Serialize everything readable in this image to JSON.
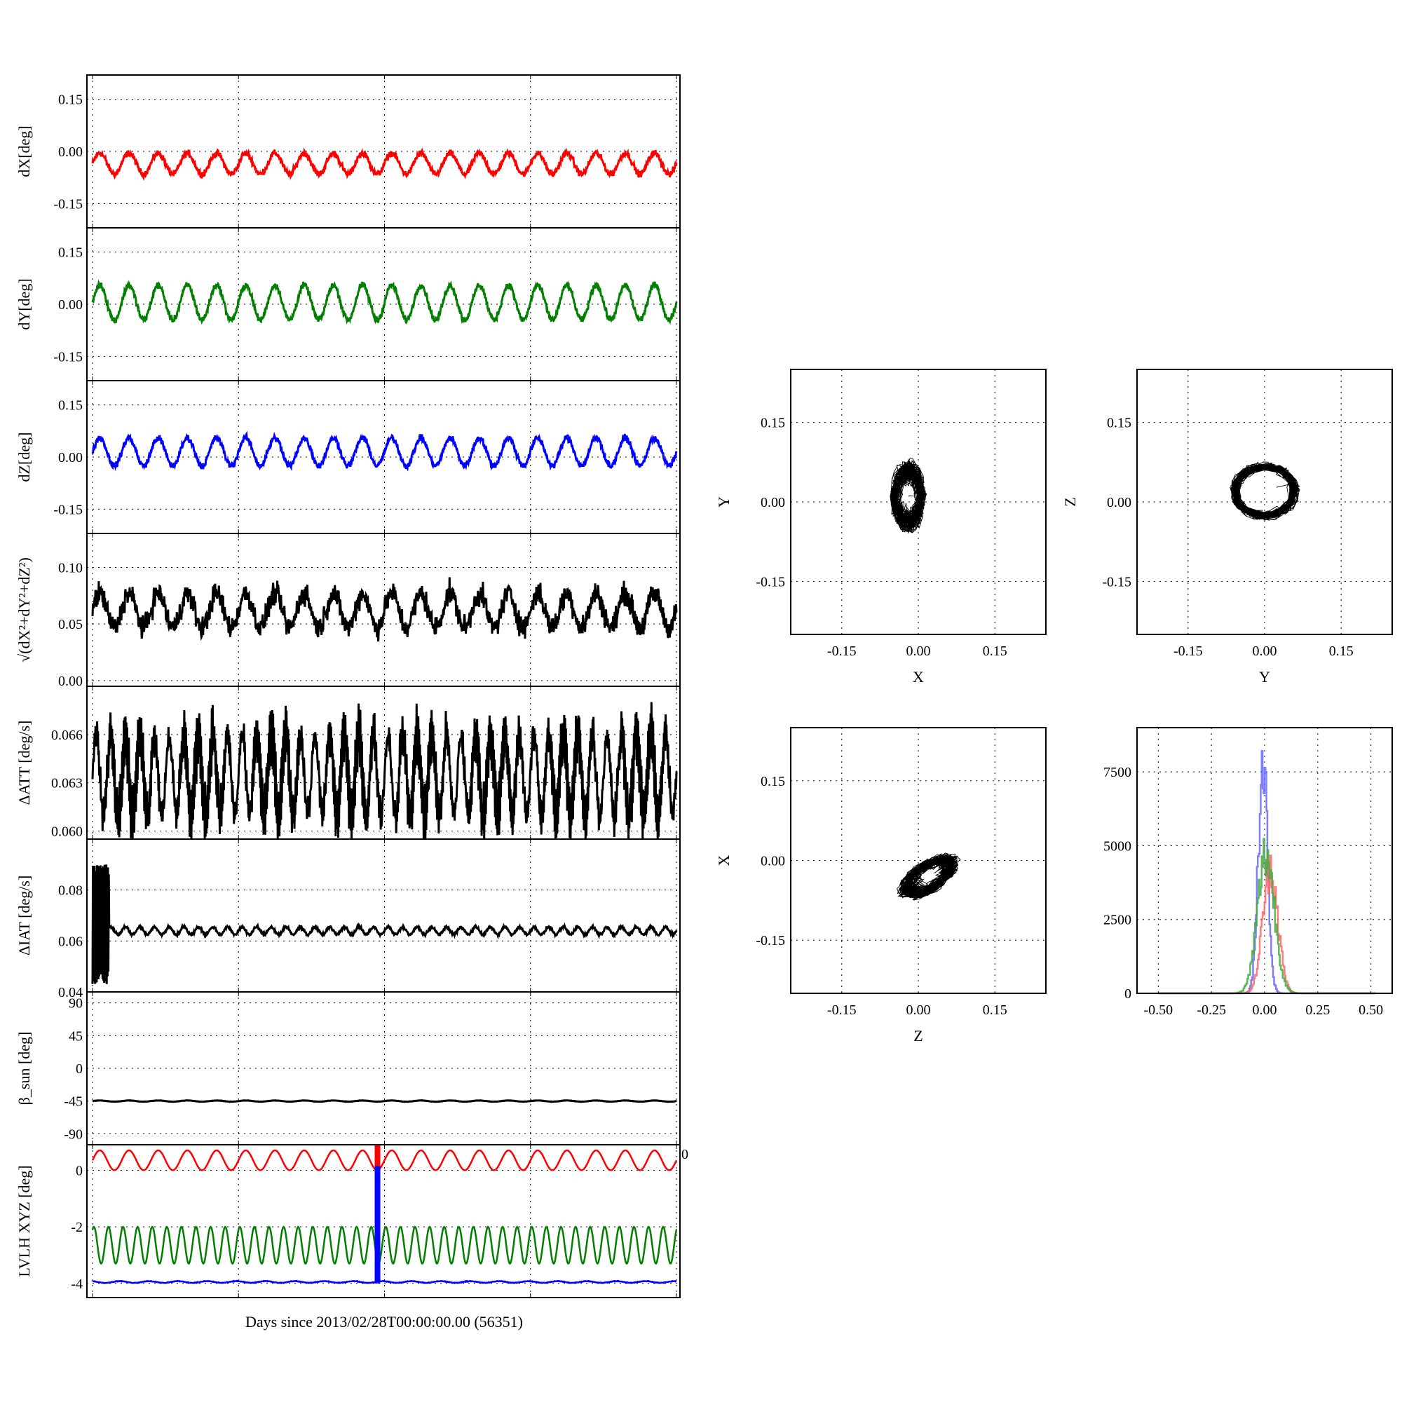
{
  "figure": {
    "xlabel": "Days since 2013/02/28T00:00:00.00 (56351)"
  },
  "chart_data": [
    {
      "id": "dX",
      "type": "line",
      "ylabel": "dX[deg]",
      "color": "#ff0000",
      "ylim": [
        -0.22,
        0.22
      ],
      "yticks": [
        "0.15",
        "0.00",
        "-0.15"
      ],
      "ytick_values": [
        0.15,
        0.0,
        -0.15
      ],
      "xlim": [
        0,
        1
      ],
      "series": [
        {
          "mean": -0.035,
          "amplitude": 0.03,
          "cycles": 20,
          "noise": 0.009
        }
      ]
    },
    {
      "id": "dY",
      "type": "line",
      "ylabel": "dY[deg]",
      "color": "#007f00",
      "ylim": [
        -0.22,
        0.22
      ],
      "yticks": [
        "0.15",
        "0.00",
        "-0.15"
      ],
      "ytick_values": [
        0.15,
        0.0,
        -0.15
      ],
      "xlim": [
        0,
        1
      ],
      "series": [
        {
          "mean": 0.005,
          "amplitude": 0.05,
          "cycles": 20,
          "noise": 0.009
        }
      ]
    },
    {
      "id": "dZ",
      "type": "line",
      "ylabel": "dZ[deg]",
      "color": "#0000ff",
      "ylim": [
        -0.22,
        0.22
      ],
      "yticks": [
        "0.15",
        "0.00",
        "-0.15"
      ],
      "ytick_values": [
        0.15,
        0.0,
        -0.15
      ],
      "xlim": [
        0,
        1
      ],
      "series": [
        {
          "mean": 0.015,
          "amplitude": 0.04,
          "cycles": 20,
          "noise": 0.009
        }
      ]
    },
    {
      "id": "dR",
      "type": "line",
      "ylabel": "√(dX²+dY²+dZ²)",
      "color": "#000000",
      "ylim": [
        -0.005,
        0.13
      ],
      "yticks": [
        "0.10",
        "0.05",
        "0.00"
      ],
      "ytick_values": [
        0.1,
        0.05,
        0.0
      ],
      "xlim": [
        0,
        1
      ],
      "series": [
        {
          "mean": 0.062,
          "amplitude": 0.015,
          "cycles": 20,
          "noise": 0.01
        }
      ]
    },
    {
      "id": "dATT",
      "type": "line",
      "ylabel": "ΔATT [deg/s]",
      "color": "#000000",
      "ylim": [
        0.0595,
        0.069
      ],
      "yticks": [
        "0.066",
        "0.063",
        "0.060"
      ],
      "ytick_values": [
        0.066,
        0.063,
        0.06
      ],
      "xlim": [
        0,
        1
      ],
      "series": [
        {
          "mean": 0.0635,
          "amplitude": 0.0025,
          "cycles": 40,
          "noise": 0.0008
        }
      ]
    },
    {
      "id": "dIAT",
      "type": "line",
      "ylabel": "ΔIAT [deg/s]",
      "color": "#000000",
      "ylim": [
        0.04,
        0.1
      ],
      "yticks": [
        "0.08",
        "0.06",
        "0.04"
      ],
      "ytick_values": [
        0.08,
        0.06,
        0.04
      ],
      "xlim": [
        0,
        1
      ],
      "series": [
        {
          "mean": 0.064,
          "amplitude": 0.0015,
          "cycles": 40,
          "noise": 0.0005,
          "early_burst_until": 0.028,
          "burst_range": [
            0.043,
            0.091
          ]
        }
      ]
    },
    {
      "id": "beta",
      "type": "line",
      "ylabel": "β_sun [deg]",
      "color": "#000000",
      "ylim": [
        -105,
        105
      ],
      "yticks": [
        "90",
        "45",
        "0",
        "-45",
        "-90"
      ],
      "ytick_values": [
        90,
        45,
        0,
        -45,
        -90
      ],
      "xlim": [
        0,
        1
      ],
      "series": [
        {
          "mean": -45,
          "amplitude": 0.8,
          "cycles": 20,
          "noise": 0.2
        }
      ]
    },
    {
      "id": "lvlh",
      "type": "line",
      "ylabel": "LVLH XYZ [deg]",
      "ylim": [
        -4.5,
        0.9
      ],
      "yticks": [
        "0",
        "-2",
        "-4"
      ],
      "ytick_values": [
        0,
        -2,
        -4
      ],
      "right_tick": "0",
      "xlim": [
        0,
        1
      ],
      "series": [
        {
          "color": "#ff0000",
          "mean": 0.35,
          "amplitude": 0.35,
          "cycles": 20,
          "noise": 0.0
        },
        {
          "color": "#007f00",
          "mean": -2.65,
          "amplitude": 0.65,
          "cycles": 40,
          "noise": 0.0
        },
        {
          "color": "#0000ff",
          "mean": -3.95,
          "amplitude": 0.03,
          "cycles": 20,
          "noise": 0.01
        }
      ],
      "spike": {
        "x": 0.488,
        "y_top": 0.9,
        "y_bottom": -4.0,
        "color": "#0000ff",
        "red_top": 0.15
      }
    }
  ],
  "scatter_panels": [
    {
      "id": "xy",
      "type": "scatter",
      "xlabel": "X",
      "ylabel": "Y",
      "xlim": [
        -0.25,
        0.25
      ],
      "ylim": [
        -0.25,
        0.25
      ],
      "ticks": [
        "-0.15",
        "0.00",
        "0.15"
      ],
      "tick_values": [
        -0.15,
        0.0,
        0.15
      ],
      "cloud": {
        "cx": -0.02,
        "cy": 0.01,
        "rx": 0.04,
        "ry": 0.08
      }
    },
    {
      "id": "yz",
      "type": "scatter",
      "xlabel": "Y",
      "ylabel": "Z",
      "xlim": [
        -0.25,
        0.25
      ],
      "ylim": [
        -0.25,
        0.25
      ],
      "ticks": [
        "-0.15",
        "0.00",
        "0.15"
      ],
      "tick_values": [
        -0.15,
        0.0,
        0.15
      ],
      "cloud": {
        "cx": 0.0,
        "cy": 0.02,
        "rx": 0.075,
        "ry": 0.06,
        "ring": true
      }
    },
    {
      "id": "zx",
      "type": "scatter",
      "xlabel": "Z",
      "ylabel": "X",
      "xlim": [
        -0.25,
        0.25
      ],
      "ylim": [
        -0.25,
        0.25
      ],
      "ticks": [
        "-0.15",
        "0.00",
        "0.15"
      ],
      "tick_values": [
        -0.15,
        0.0,
        0.15
      ],
      "cloud": {
        "cx": 0.02,
        "cy": -0.03,
        "rx": 0.07,
        "ry": 0.04,
        "tilt": true
      }
    }
  ],
  "histogram": {
    "id": "hist",
    "type": "line",
    "xlim": [
      -0.6,
      0.6
    ],
    "ylim": [
      0,
      9000
    ],
    "xticks": [
      "-0.50",
      "-0.25",
      "0.00",
      "0.25",
      "0.50"
    ],
    "xtick_values": [
      -0.5,
      -0.25,
      0.0,
      0.25,
      0.5
    ],
    "yticks": [
      "7500",
      "5000",
      "2500",
      "0"
    ],
    "ytick_values": [
      7500,
      5000,
      2500,
      0
    ],
    "series": [
      {
        "color": "#6666ff",
        "center": -0.01,
        "width": 0.022,
        "peak": 8000
      },
      {
        "color": "#ff6666",
        "center": 0.025,
        "width": 0.035,
        "peak": 4300
      },
      {
        "color": "#44aa44",
        "center": 0.005,
        "width": 0.04,
        "peak": 4700
      }
    ]
  }
}
